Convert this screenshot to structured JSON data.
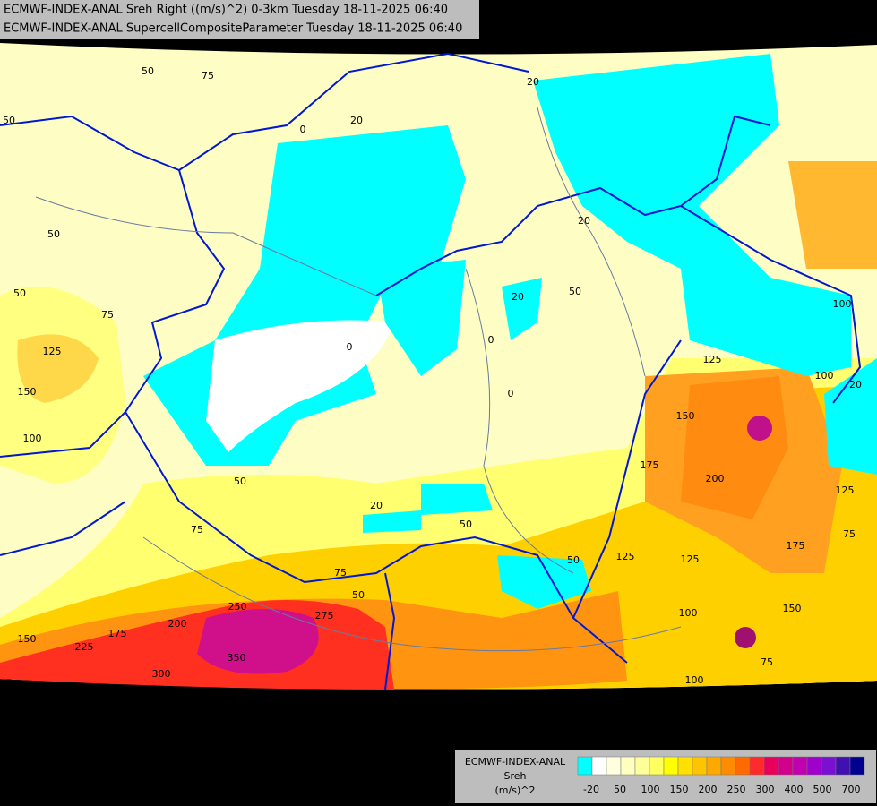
{
  "header": {
    "line1": "ECMWF-INDEX-ANAL Sreh Right ((m/s)^2) 0-3km Tuesday 18-11-2025 06:40",
    "line2": "ECMWF-INDEX-ANAL SupercellCompositeParameter Tuesday 18-11-2025 06:40"
  },
  "contour_labels": [
    "50",
    "75",
    "50",
    "50",
    "50",
    "75",
    "125",
    "150",
    "100",
    "20",
    "0",
    "20",
    "0",
    "20",
    "50",
    "0",
    "0",
    "50",
    "20",
    "50",
    "75",
    "100",
    "125",
    "150",
    "175",
    "200",
    "125",
    "175",
    "75",
    "50",
    "125",
    "125",
    "100",
    "150",
    "75",
    "100",
    "250",
    "275",
    "350",
    "200",
    "225",
    "175",
    "150",
    "300",
    "75",
    "50",
    "20",
    "20",
    "100"
  ],
  "legend": {
    "title": [
      "ECMWF-INDEX-ANAL",
      "Sreh",
      "(m/s)^2"
    ],
    "colors": [
      "#00ffff",
      "#ffffff",
      "#ffffe0",
      "#ffffc0",
      "#ffff9a",
      "#ffff60",
      "#ffff00",
      "#ffe000",
      "#ffc400",
      "#ffa800",
      "#ff8c00",
      "#ff6a00",
      "#ff2a2a",
      "#e8005a",
      "#d0008c",
      "#c000b0",
      "#a000cc",
      "#7a10d0",
      "#4010b0",
      "#000090"
    ],
    "ticks": [
      "-20",
      "50",
      "100",
      "150",
      "200",
      "250",
      "300",
      "400",
      "500",
      "700"
    ]
  }
}
